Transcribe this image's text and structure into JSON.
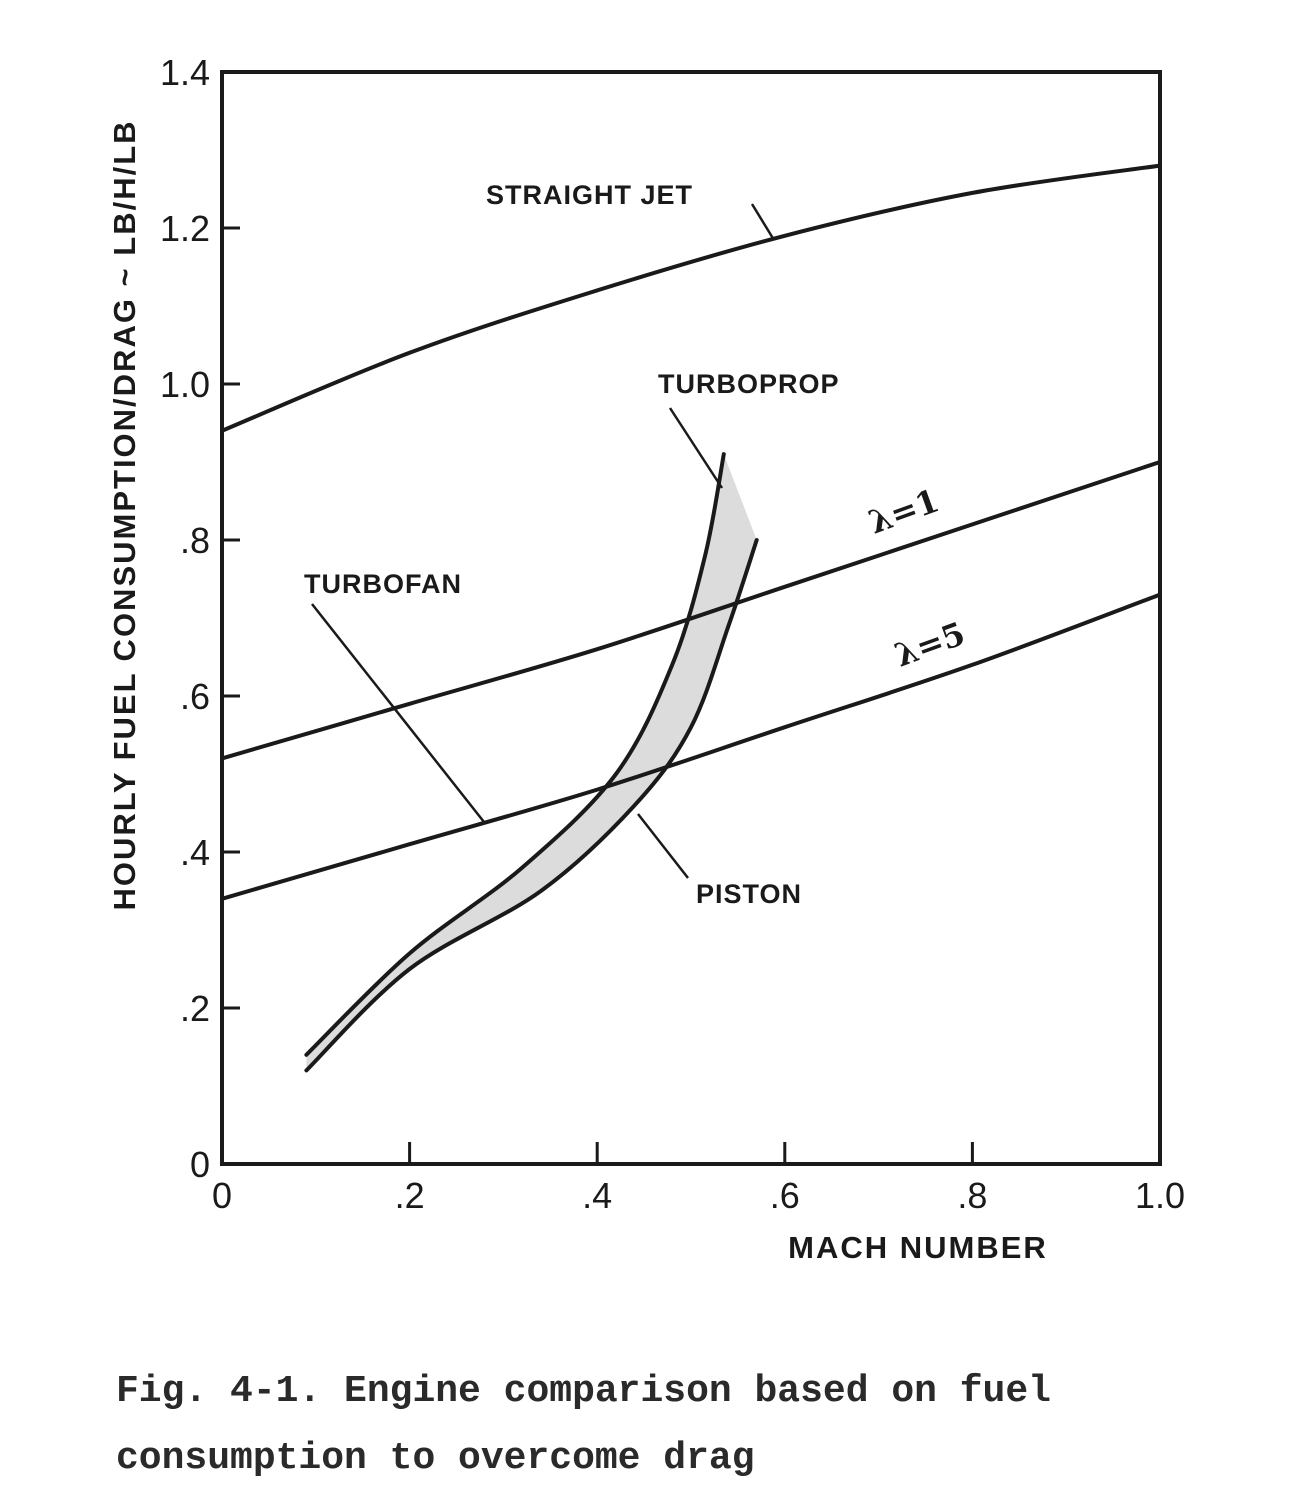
{
  "chart_data": {
    "type": "line",
    "xlabel": "MACH NUMBER",
    "ylabel": "HOURLY FUEL CONSUMPTION/DRAG ~ LB/H/LB",
    "xlim": [
      0,
      1.0
    ],
    "ylim": [
      0,
      1.4
    ],
    "x_ticks": [
      0,
      0.2,
      0.4,
      0.6,
      0.8,
      1.0
    ],
    "x_tick_labels": [
      "0",
      ".2",
      ".4",
      ".6",
      ".8",
      "1.0"
    ],
    "y_ticks": [
      0,
      0.2,
      0.4,
      0.6,
      0.8,
      1.0,
      1.2,
      1.4
    ],
    "y_tick_labels": [
      "0",
      ".2",
      ".4",
      ".6",
      ".8",
      "1.0",
      "1.2",
      "1.4"
    ],
    "grid": false,
    "legend": "none",
    "series": [
      {
        "name": "STRAIGHT JET",
        "x": [
          0,
          0.2,
          0.4,
          0.6,
          0.8,
          1.0
        ],
        "y": [
          0.94,
          1.04,
          1.12,
          1.19,
          1.245,
          1.28
        ]
      },
      {
        "name": "λ=1",
        "x": [
          0,
          0.2,
          0.4,
          0.6,
          0.8,
          1.0
        ],
        "y": [
          0.52,
          0.59,
          0.66,
          0.74,
          0.82,
          0.9
        ]
      },
      {
        "name": "λ=5",
        "x": [
          0,
          0.2,
          0.4,
          0.6,
          0.8,
          1.0
        ],
        "y": [
          0.34,
          0.41,
          0.48,
          0.56,
          0.64,
          0.73
        ]
      },
      {
        "name": "TURBOPROP",
        "x": [
          0.09,
          0.2,
          0.32,
          0.42,
          0.48,
          0.515,
          0.535
        ],
        "y": [
          0.14,
          0.27,
          0.38,
          0.5,
          0.64,
          0.78,
          0.91
        ]
      },
      {
        "name": "PISTON",
        "x": [
          0.09,
          0.2,
          0.34,
          0.44,
          0.5,
          0.54,
          0.57
        ],
        "y": [
          0.12,
          0.25,
          0.35,
          0.46,
          0.56,
          0.69,
          0.8
        ]
      }
    ],
    "annotations": [
      "STRAIGHT JET",
      "TURBOPROP",
      "TURBOFAN",
      "λ=1",
      "λ=5",
      "PISTON"
    ]
  },
  "labels": {
    "straight_jet": "STRAIGHT JET",
    "turboprop": "TURBOPROP",
    "turbofan": "TURBOFAN",
    "lambda1": "λ=1",
    "lambda5": "λ=5",
    "piston": "PISTON"
  },
  "caption": {
    "line1": "Fig. 4-1. Engine comparison based on fuel",
    "line2": "consumption to overcome drag"
  }
}
